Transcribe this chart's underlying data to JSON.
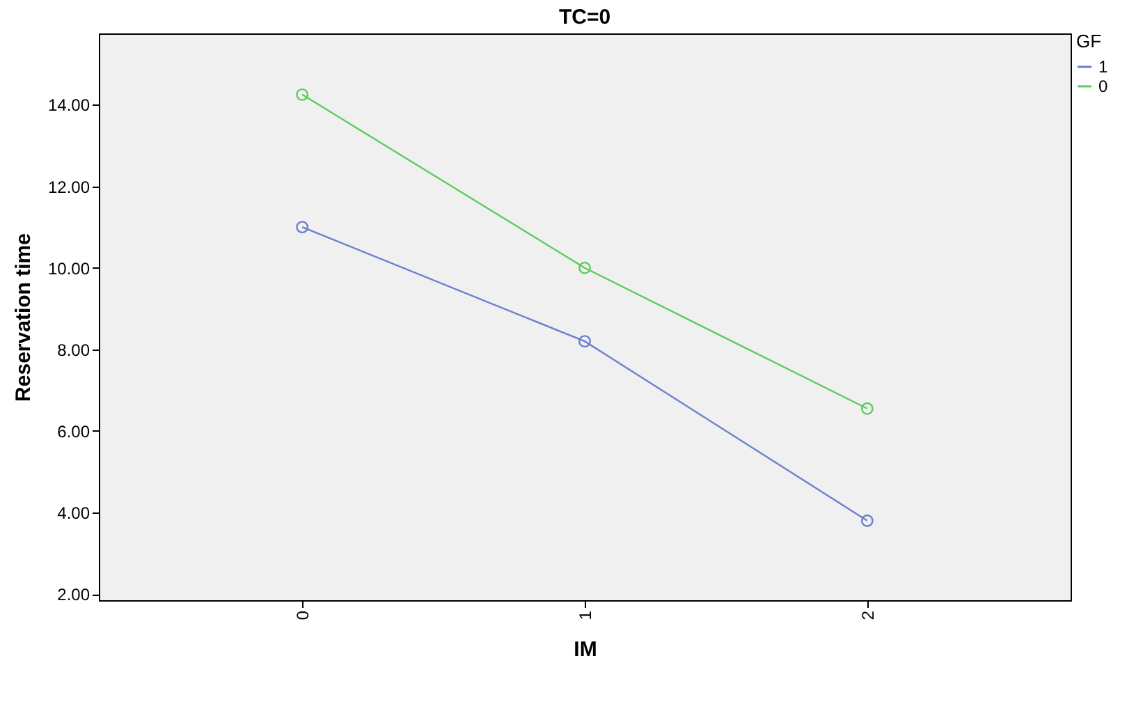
{
  "chart_data": {
    "type": "line",
    "title": "TC=0",
    "xlabel": "IM",
    "ylabel": "Reservation time",
    "legend_title": "GF",
    "categories": [
      "0",
      "1",
      "2"
    ],
    "series": [
      {
        "name": "1",
        "color": "#6b7fcc",
        "values": [
          11.0,
          8.2,
          3.8
        ]
      },
      {
        "name": "0",
        "color": "#5ccc5c",
        "values": [
          14.25,
          10.0,
          6.55
        ]
      }
    ],
    "ylim": [
      1.85,
      15.75
    ],
    "yticks": [
      {
        "value": 2,
        "label": "2.00"
      },
      {
        "value": 4,
        "label": "4.00"
      },
      {
        "value": 6,
        "label": "6.00"
      },
      {
        "value": 8,
        "label": "8.00"
      },
      {
        "value": 10,
        "label": "10.00"
      },
      {
        "value": 12,
        "label": "12.00"
      },
      {
        "value": 14,
        "label": "14.00"
      }
    ],
    "grid": false,
    "legend": "top right",
    "marker": "circle",
    "line_style": "solid"
  }
}
